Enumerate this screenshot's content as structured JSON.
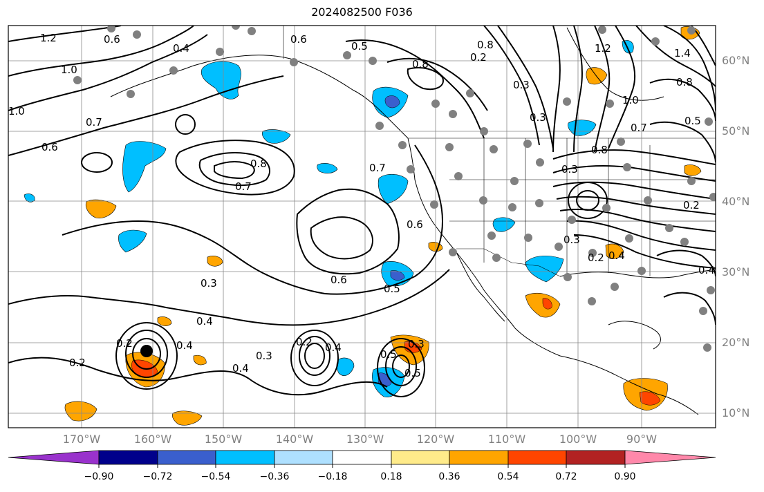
{
  "title": "2024082500 F036",
  "lat_labels": [
    "60°N",
    "50°N",
    "40°N",
    "30°N",
    "20°N",
    "10°N"
  ],
  "lon_labels": [
    "170°W",
    "160°W",
    "150°W",
    "140°W",
    "130°W",
    "120°W",
    "110°W",
    "100°W",
    "90°W"
  ],
  "colorbar": {
    "ticks": [
      "−0.90",
      "−0.72",
      "−0.54",
      "−0.36",
      "−0.18",
      "0.18",
      "0.36",
      "0.54",
      "0.72",
      "0.90"
    ],
    "colors": [
      "#9932cc",
      "#00008b",
      "#3a5fcd",
      "#00bfff",
      "#aee0ff",
      "#ffffff",
      "#ffeb8a",
      "#ffa500",
      "#ff4500",
      "#b22222",
      "#ff88aa"
    ]
  },
  "contour_labels": [
    "1.2",
    "0.6",
    "0.4",
    "0.6",
    "0.5",
    "0.8",
    "1.0",
    "0.7",
    "0.6",
    "1.0",
    "0.8",
    "0.7",
    "0.7",
    "0.3",
    "0.6",
    "0.3",
    "0.4",
    "0.8",
    "1.2",
    "1.4",
    "1.0",
    "0.8",
    "0.7",
    "0.5",
    "0.3",
    "0.8",
    "0.4",
    "0.2",
    "0.3",
    "0.4",
    "0.2",
    "0.3",
    "0.6",
    "0.5",
    "0.3",
    "0.4",
    "0.2",
    "0.2",
    "0.4",
    "0.3",
    "0.5",
    "0.4",
    "0.2",
    "0.2",
    "0.5"
  ],
  "marker_colors": {
    "station": "#808080",
    "storm": "#000000"
  }
}
